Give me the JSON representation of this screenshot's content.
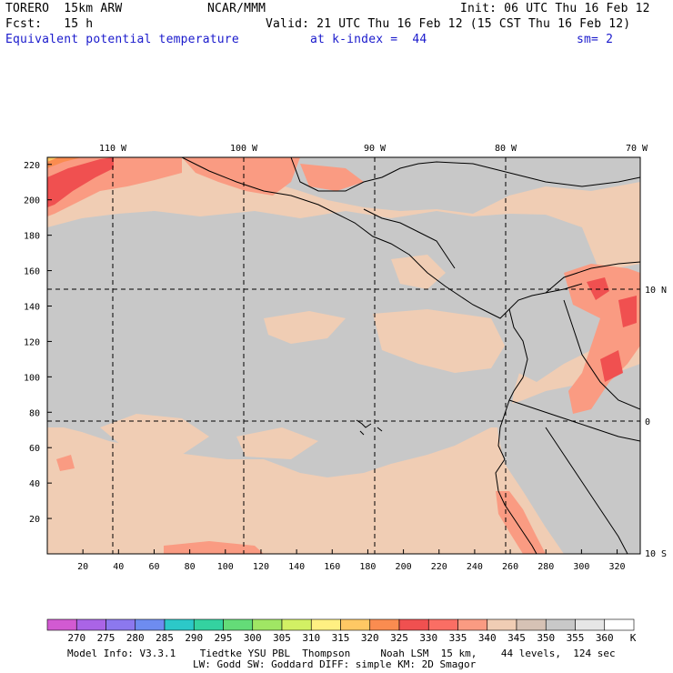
{
  "header": {
    "model": "TORERO  15km ARW",
    "org": "NCAR/MMM",
    "init": "Init: 06 UTC Thu 16 Feb 12",
    "fcst": "Fcst:   15 h",
    "valid": "Valid: 21 UTC Thu 16 Feb 12 (15 CST Thu 16 Feb 12)",
    "field": "Equivalent potential temperature",
    "level": "at k-index =  44",
    "smooth": "sm= 2"
  },
  "map": {
    "top_lon_labels": [
      "110 W",
      "100 W",
      "90 W",
      "80 W",
      "70 W"
    ],
    "right_lat_labels": [
      "10 N",
      "0",
      "10 S"
    ],
    "x_ticks": [
      "20",
      "40",
      "60",
      "80",
      "100",
      "120",
      "140",
      "160",
      "180",
      "200",
      "220",
      "240",
      "260",
      "280",
      "300",
      "320"
    ],
    "y_ticks": [
      "220",
      "200",
      "180",
      "160",
      "140",
      "120",
      "100",
      "80",
      "60",
      "40",
      "20"
    ],
    "colors": {
      "gray": "#c8c8c8",
      "tan": "#f0cdb4",
      "salmon": "#fa9b82",
      "red": "#f05050",
      "orange": "#fa8c50",
      "yellow": "#ffc864",
      "coast": "#000000",
      "grid": "#000000"
    }
  },
  "colorbar": {
    "labels": [
      "270",
      "275",
      "280",
      "285",
      "290",
      "295",
      "300",
      "305",
      "310",
      "315",
      "320",
      "325",
      "330",
      "335",
      "340",
      "345",
      "350",
      "355",
      "360"
    ],
    "unit": "K",
    "colors": [
      "#d25ad2",
      "#aa64e6",
      "#8c78ee",
      "#6e8cf0",
      "#2cc8c8",
      "#34d2a0",
      "#64dc78",
      "#a0e664",
      "#d2f064",
      "#fff082",
      "#ffc864",
      "#fa8c50",
      "#f05050",
      "#fa6e64",
      "#fa9b82",
      "#f0cdb4",
      "#d6c2b5",
      "#c8c8c8",
      "#e6e6e6",
      "#ffffff"
    ]
  },
  "footer": {
    "line1": "Model Info: V3.3.1    Tiedtke YSU PBL  Thompson     Noah LSM  15 km,    44 levels,  124 sec",
    "line2": "LW: Godd SW: Goddard DIFF: simple KM: 2D Smagor"
  }
}
